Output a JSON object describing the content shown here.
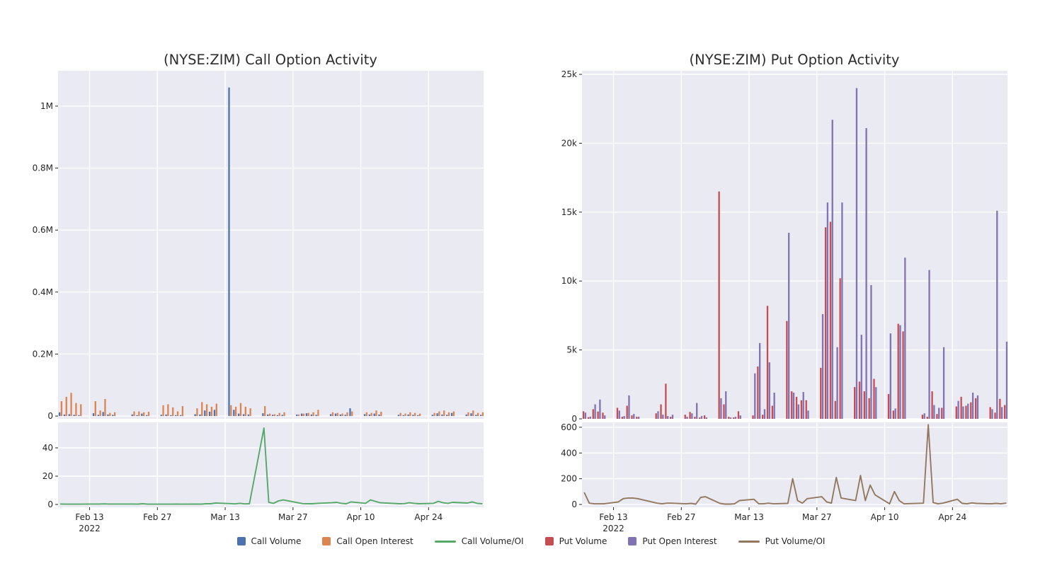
{
  "figure": {
    "background": "#ffffff",
    "panel_background": "#eaeaf2",
    "grid_color": "#ffffff",
    "text_color": "#262626",
    "title_color": "#2d2d2d"
  },
  "legend": {
    "items": [
      {
        "label": "Call Volume",
        "color": "#4c72b0",
        "swatch": "square"
      },
      {
        "label": "Call Open Interest",
        "color": "#dd8452",
        "swatch": "square"
      },
      {
        "label": "Call Volume/OI",
        "color": "#55a868",
        "swatch": "line"
      },
      {
        "label": "Put Volume",
        "color": "#c44e52",
        "swatch": "square"
      },
      {
        "label": "Put Open Interest",
        "color": "#8172b3",
        "swatch": "square"
      },
      {
        "label": "Put Volume/OI",
        "color": "#937860",
        "swatch": "line"
      }
    ]
  },
  "dates": [
    "2022-02-07",
    "2022-02-08",
    "2022-02-09",
    "2022-02-10",
    "2022-02-11",
    "2022-02-14",
    "2022-02-15",
    "2022-02-16",
    "2022-02-17",
    "2022-02-18",
    "2022-02-22",
    "2022-02-23",
    "2022-02-24",
    "2022-02-25",
    "2022-02-28",
    "2022-03-01",
    "2022-03-02",
    "2022-03-03",
    "2022-03-04",
    "2022-03-07",
    "2022-03-08",
    "2022-03-09",
    "2022-03-10",
    "2022-03-11",
    "2022-03-14",
    "2022-03-15",
    "2022-03-16",
    "2022-03-17",
    "2022-03-18",
    "2022-03-21",
    "2022-03-22",
    "2022-03-23",
    "2022-03-24",
    "2022-03-25",
    "2022-03-28",
    "2022-03-29",
    "2022-03-30",
    "2022-03-31",
    "2022-04-01",
    "2022-04-04",
    "2022-04-05",
    "2022-04-06",
    "2022-04-07",
    "2022-04-08",
    "2022-04-11",
    "2022-04-12",
    "2022-04-13",
    "2022-04-14",
    "2022-04-18",
    "2022-04-19",
    "2022-04-20",
    "2022-04-21",
    "2022-04-22",
    "2022-04-25",
    "2022-04-26",
    "2022-04-27",
    "2022-04-28",
    "2022-04-29",
    "2022-05-02",
    "2022-05-03",
    "2022-05-04",
    "2022-05-05"
  ],
  "xticks": [
    {
      "date": "2022-02-13",
      "label": "Feb 13",
      "sublabel": "2022"
    },
    {
      "date": "2022-02-27",
      "label": "Feb 27"
    },
    {
      "date": "2022-03-13",
      "label": "Mar 13"
    },
    {
      "date": "2022-03-27",
      "label": "Mar 27"
    },
    {
      "date": "2022-04-10",
      "label": "Apr 10"
    },
    {
      "date": "2022-04-24",
      "label": "Apr 24"
    }
  ],
  "chart_data": [
    {
      "id": "call",
      "type": "bar",
      "title": "(NYSE:ZIM) Call Option Activity",
      "main_ylim": [
        -9000,
        1114000
      ],
      "ratio_ylim": [
        -2,
        58
      ],
      "main_yticks": [
        {
          "v": 0,
          "label": "0"
        },
        {
          "v": 200000,
          "label": "0.2M"
        },
        {
          "v": 400000,
          "label": "0.4M"
        },
        {
          "v": 600000,
          "label": "0.6M"
        },
        {
          "v": 800000,
          "label": "0.8M"
        },
        {
          "v": 1000000,
          "label": "1M"
        }
      ],
      "ratio_yticks": [
        {
          "v": 0,
          "label": "0"
        },
        {
          "v": 20,
          "label": "20"
        },
        {
          "v": 40,
          "label": "40"
        }
      ],
      "series": [
        {
          "name": "Call Volume",
          "type": "bar",
          "panel": "main",
          "color": "#4c72b0",
          "values": [
            12000,
            5000,
            6000,
            4000,
            3000,
            9000,
            4000,
            13000,
            5000,
            4000,
            5000,
            3000,
            8000,
            3000,
            4000,
            5000,
            3000,
            3000,
            3000,
            6000,
            5000,
            18000,
            14000,
            20000,
            1060000,
            20000,
            8000,
            6000,
            5000,
            9000,
            5000,
            4000,
            3000,
            4000,
            5000,
            8000,
            9000,
            5000,
            4000,
            6000,
            8000,
            5000,
            4000,
            25000,
            6000,
            5000,
            8000,
            5000,
            4000,
            3000,
            5000,
            4000,
            3000,
            4000,
            9000,
            5000,
            4000,
            10000,
            5000,
            9000,
            4000,
            4000
          ]
        },
        {
          "name": "Call Open Interest",
          "type": "bar",
          "panel": "main",
          "color": "#dd8452",
          "values": [
            48000,
            62000,
            75000,
            42000,
            38000,
            48000,
            18000,
            55000,
            10000,
            12000,
            15000,
            15000,
            12000,
            14000,
            35000,
            38000,
            28000,
            15000,
            32000,
            25000,
            45000,
            38000,
            30000,
            40000,
            35000,
            30000,
            42000,
            30000,
            25000,
            32000,
            8000,
            6000,
            10000,
            12000,
            5000,
            8000,
            10000,
            12000,
            20000,
            12000,
            10000,
            8000,
            12000,
            15000,
            12000,
            10000,
            18000,
            14000,
            10000,
            8000,
            12000,
            10000,
            8000,
            10000,
            15000,
            18000,
            12000,
            15000,
            12000,
            18000,
            10000,
            12000
          ]
        },
        {
          "name": "Call Volume/OI",
          "type": "line",
          "panel": "ratio",
          "color": "#55a868",
          "values": [
            0.3,
            0.2,
            0.2,
            0.2,
            0.2,
            0.3,
            0.3,
            0.4,
            0.3,
            0.3,
            0.3,
            0.2,
            0.5,
            0.2,
            0.2,
            0.2,
            0.2,
            0.3,
            0.2,
            0.3,
            0.2,
            0.5,
            0.5,
            1.0,
            0.6,
            0.4,
            0.8,
            0.4,
            0.5,
            54,
            1.5,
            0.8,
            2.5,
            3.2,
            1.2,
            0.6,
            0.5,
            0.5,
            0.8,
            1.2,
            1.5,
            0.8,
            0.5,
            1.8,
            0.8,
            3.2,
            2.2,
            1.2,
            0.5,
            0.6,
            1.2,
            0.8,
            0.5,
            0.8,
            2.2,
            1.2,
            0.8,
            1.5,
            1.0,
            1.8,
            0.8,
            0.5
          ]
        }
      ]
    },
    {
      "id": "put",
      "type": "bar",
      "title": "(NYSE:ZIM) Put Option Activity",
      "main_ylim": [
        0,
        25260
      ],
      "ratio_ylim": [
        -22,
        638
      ],
      "main_yticks": [
        {
          "v": 0,
          "label": "0"
        },
        {
          "v": 5000,
          "label": "5k"
        },
        {
          "v": 10000,
          "label": "10k"
        },
        {
          "v": 15000,
          "label": "15k"
        },
        {
          "v": 20000,
          "label": "20k"
        },
        {
          "v": 25000,
          "label": "25k"
        }
      ],
      "ratio_yticks": [
        {
          "v": 0,
          "label": "0"
        },
        {
          "v": 200,
          "label": "200"
        },
        {
          "v": 400,
          "label": "400"
        },
        {
          "v": 600,
          "label": "600"
        }
      ],
      "series": [
        {
          "name": "Put Volume",
          "type": "bar",
          "panel": "main",
          "color": "#c44e52",
          "values": [
            550,
            120,
            700,
            530,
            450,
            800,
            150,
            950,
            250,
            150,
            400,
            1050,
            2550,
            150,
            300,
            500,
            150,
            100,
            250,
            16500,
            1050,
            150,
            100,
            550,
            250,
            3800,
            300,
            8200,
            950,
            7100,
            2000,
            1600,
            1350,
            1350,
            3700,
            13900,
            14300,
            1300,
            10200,
            2300,
            2700,
            2000,
            1500,
            2900,
            1800,
            600,
            6900,
            6350,
            300,
            150,
            2000,
            350,
            800,
            900,
            1600,
            950,
            1200,
            1500,
            850,
            450,
            1450,
            1000
          ]
        },
        {
          "name": "Put Open Interest",
          "type": "bar",
          "panel": "main",
          "color": "#8172b3",
          "values": [
            450,
            160,
            1050,
            1400,
            250,
            600,
            200,
            1700,
            350,
            150,
            550,
            300,
            200,
            300,
            150,
            400,
            1150,
            200,
            100,
            1500,
            2000,
            100,
            150,
            250,
            3300,
            5500,
            700,
            4100,
            1900,
            13500,
            1900,
            1050,
            1950,
            600,
            7600,
            15700,
            21700,
            5200,
            15700,
            24000,
            6100,
            21100,
            9700,
            2300,
            6200,
            750,
            6800,
            11700,
            400,
            10800,
            1000,
            800,
            5200,
            1300,
            900,
            1100,
            1900,
            1700,
            700,
            15100,
            850,
            5600
          ]
        },
        {
          "name": "Put Volume/OI",
          "type": "line",
          "panel": "ratio",
          "color": "#937860",
          "values": [
            90,
            10,
            5,
            5,
            5,
            20,
            45,
            50,
            50,
            45,
            10,
            5,
            10,
            10,
            5,
            8,
            3,
            55,
            60,
            8,
            3,
            3,
            5,
            30,
            40,
            5,
            5,
            10,
            5,
            8,
            200,
            30,
            10,
            45,
            60,
            20,
            10,
            210,
            50,
            30,
            225,
            30,
            150,
            75,
            5,
            100,
            30,
            5,
            10,
            620,
            15,
            5,
            10,
            40,
            8,
            5,
            12,
            8,
            5,
            8,
            5,
            10
          ]
        }
      ]
    }
  ]
}
